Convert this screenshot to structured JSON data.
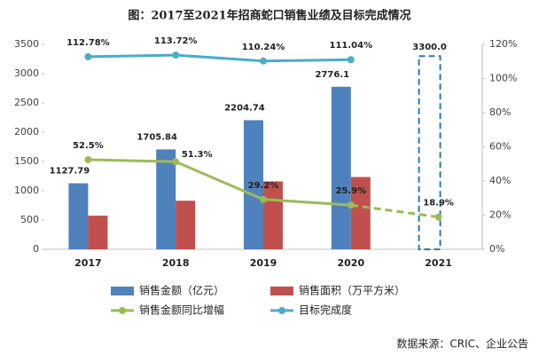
{
  "chart_data": {
    "type": "bar_line",
    "title": "图：2017至2021年招商蛇口销售业绩及目标完成情况",
    "categories": [
      "2017",
      "2018",
      "2019",
      "2020",
      "2021"
    ],
    "series": [
      {
        "name": "销售金额（亿元）",
        "color": "#4f81bd",
        "kind": "bar",
        "values": [
          1127.79,
          1705.84,
          2204.74,
          2776.1,
          null
        ],
        "value_labels": [
          "1127.79",
          "1705.84",
          "2204.74",
          "2776.1",
          null
        ]
      },
      {
        "name": "销售面积（万平方米）",
        "color": "#c0504d",
        "kind": "bar",
        "values": [
          575,
          830,
          1160,
          1235,
          null
        ]
      },
      {
        "name": "销售金额同比增幅",
        "color": "#9bbb59",
        "kind": "line",
        "axis": "y2",
        "dashed_last_segment": true,
        "values": [
          52.5,
          51.3,
          29.2,
          25.9,
          18.9
        ],
        "value_labels": [
          "52.5%",
          "51.3%",
          "29.2%",
          "25.9%",
          "18.9%"
        ]
      },
      {
        "name": "目标完成度",
        "color": "#4bacc6",
        "kind": "line",
        "axis": "y2",
        "values": [
          112.78,
          113.72,
          110.24,
          111.04,
          null
        ],
        "value_labels": [
          "112.78%",
          "113.72%",
          "110.24%",
          "111.04%",
          null
        ]
      }
    ],
    "target": {
      "value": 3300,
      "label": "3300.0",
      "color": "#2e75b6"
    },
    "ylim": [
      0,
      3500
    ],
    "yticks": [
      0,
      500,
      1000,
      1500,
      2000,
      2500,
      3000,
      3500
    ],
    "y2lim": [
      0,
      120
    ],
    "y2ticks": [
      {
        "value": 0,
        "label": "0%"
      },
      {
        "value": 20,
        "label": "20%"
      },
      {
        "value": 40,
        "label": "40%"
      },
      {
        "value": 60,
        "label": "60%"
      },
      {
        "value": 80,
        "label": "80%"
      },
      {
        "value": 100,
        "label": "100%"
      },
      {
        "value": 120,
        "label": "120%"
      }
    ],
    "source": "数据来源：CRIC、企业公告"
  }
}
